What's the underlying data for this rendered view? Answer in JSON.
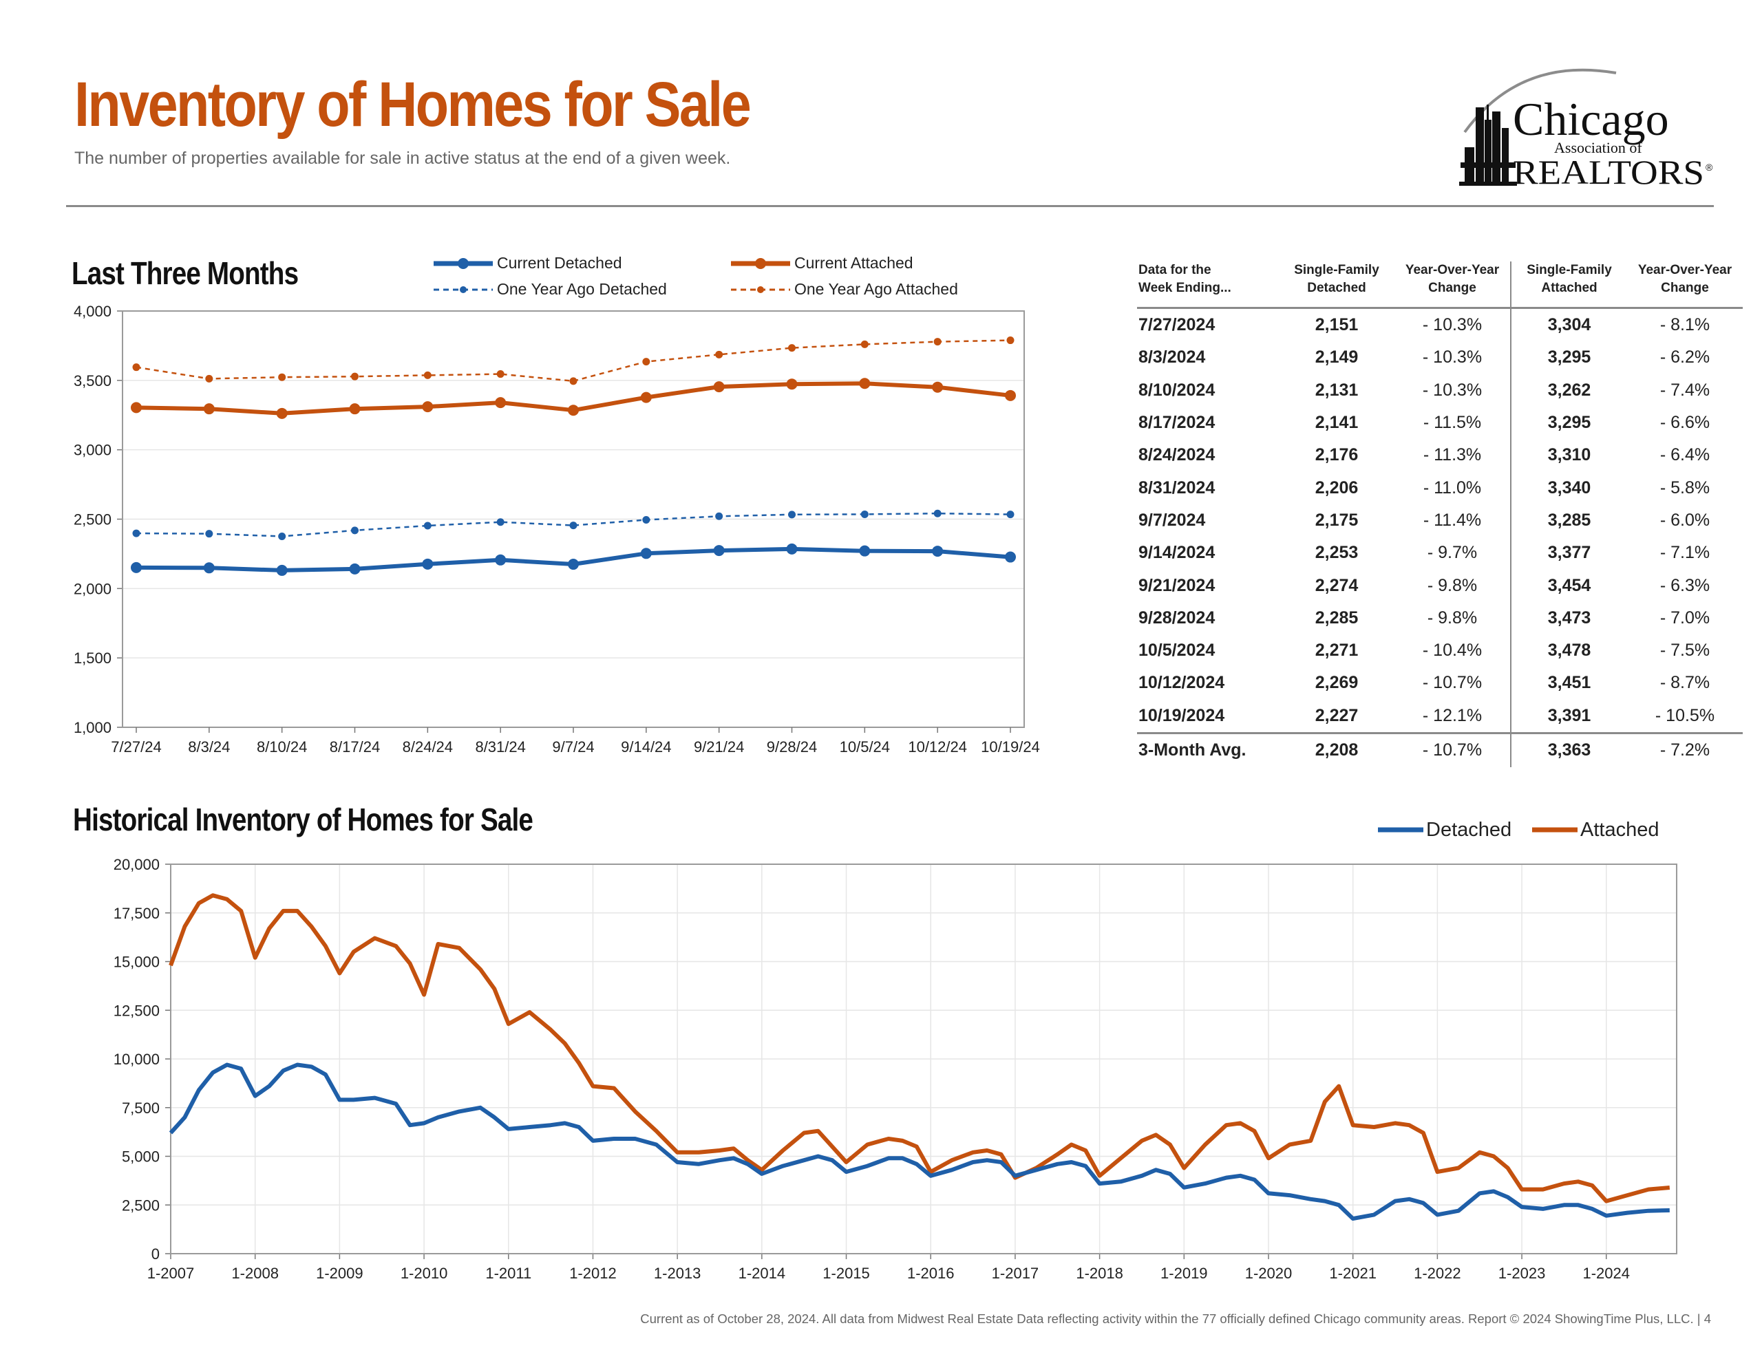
{
  "header": {
    "title": "Inventory of Homes for Sale",
    "subtitle": "The number of properties available for sale in active status at the end of a given week.",
    "logo": {
      "name": "Chicago",
      "line2": "Association of",
      "line3": "REALTORS",
      "mark": "®"
    }
  },
  "colors": {
    "accent": "#c4510e",
    "detached": "#1f5fa8",
    "attached": "#c4510e",
    "text": "#222222",
    "muted": "#666666",
    "grid": "#e6e6e6",
    "rule": "#8a8a8a"
  },
  "last_three_months": {
    "title": "Last Three Months"
  },
  "table": {
    "headers": [
      "Data for the\nWeek Ending...",
      "Single-Family\nDetached",
      "Year-Over-Year\nChange",
      "Single-Family\nAttached",
      "Year-Over-Year\nChange"
    ],
    "rows": [
      [
        "7/27/2024",
        "2,151",
        "- 10.3%",
        "3,304",
        "- 8.1%"
      ],
      [
        "8/3/2024",
        "2,149",
        "- 10.3%",
        "3,295",
        "- 6.2%"
      ],
      [
        "8/10/2024",
        "2,131",
        "- 10.3%",
        "3,262",
        "- 7.4%"
      ],
      [
        "8/17/2024",
        "2,141",
        "- 11.5%",
        "3,295",
        "- 6.6%"
      ],
      [
        "8/24/2024",
        "2,176",
        "- 11.3%",
        "3,310",
        "- 6.4%"
      ],
      [
        "8/31/2024",
        "2,206",
        "- 11.0%",
        "3,340",
        "- 5.8%"
      ],
      [
        "9/7/2024",
        "2,175",
        "- 11.4%",
        "3,285",
        "- 6.0%"
      ],
      [
        "9/14/2024",
        "2,253",
        "- 9.7%",
        "3,377",
        "- 7.1%"
      ],
      [
        "9/21/2024",
        "2,274",
        "- 9.8%",
        "3,454",
        "- 6.3%"
      ],
      [
        "9/28/2024",
        "2,285",
        "- 9.8%",
        "3,473",
        "- 7.0%"
      ],
      [
        "10/5/2024",
        "2,271",
        "- 10.4%",
        "3,478",
        "- 7.5%"
      ],
      [
        "10/12/2024",
        "2,269",
        "- 10.7%",
        "3,451",
        "- 8.7%"
      ],
      [
        "10/19/2024",
        "2,227",
        "- 12.1%",
        "3,391",
        "- 10.5%"
      ]
    ],
    "average_row": [
      "3-Month Avg.",
      "2,208",
      "- 10.7%",
      "3,363",
      "- 7.2%"
    ]
  },
  "historical": {
    "title": "Historical Inventory of Homes for Sale"
  },
  "footer": {
    "note": "Current as of October 28, 2024.  All data from Midwest Real Estate Data reflecting activity within the 77 officially defined Chicago community areas. Report © 2024 ShowingTime Plus, LLC.  |  4"
  },
  "chart_data": [
    {
      "type": "line",
      "title": "Last Three Months",
      "categories": [
        "7/27/24",
        "8/3/24",
        "8/10/24",
        "8/17/24",
        "8/24/24",
        "8/31/24",
        "9/7/24",
        "9/14/24",
        "9/21/24",
        "9/28/24",
        "10/5/24",
        "10/12/24",
        "10/19/24"
      ],
      "ylim": [
        1000,
        4000
      ],
      "yticks": [
        1000,
        1500,
        2000,
        2500,
        3000,
        3500,
        4000
      ],
      "ytick_labels": [
        "1,000",
        "1,500",
        "2,000",
        "2,500",
        "3,000",
        "3,500",
        "4,000"
      ],
      "grid": true,
      "legend": "top",
      "series": [
        {
          "name": "Current Detached",
          "color": "#1f5fa8",
          "style": "solid",
          "values": [
            2151,
            2149,
            2131,
            2141,
            2176,
            2206,
            2175,
            2253,
            2274,
            2285,
            2271,
            2269,
            2227
          ]
        },
        {
          "name": "Current Attached",
          "color": "#c4510e",
          "style": "solid",
          "values": [
            3304,
            3295,
            3262,
            3295,
            3310,
            3340,
            3285,
            3377,
            3454,
            3473,
            3478,
            3451,
            3391
          ]
        },
        {
          "name": "One Year Ago Detached",
          "color": "#1f5fa8",
          "style": "dashed",
          "values": [
            2398,
            2395,
            2376,
            2419,
            2453,
            2479,
            2455,
            2495,
            2521,
            2533,
            2535,
            2541,
            2534
          ]
        },
        {
          "name": "One Year Ago Attached",
          "color": "#c4510e",
          "style": "dashed",
          "values": [
            3595,
            3512,
            3523,
            3528,
            3537,
            3546,
            3495,
            3635,
            3686,
            3734,
            3760,
            3779,
            3789
          ]
        }
      ]
    },
    {
      "type": "line",
      "title": "Historical Inventory of Homes for Sale",
      "x_range": [
        "1-2007",
        "10-2024"
      ],
      "xtick_labels": [
        "1-2007",
        "1-2008",
        "1-2009",
        "1-2010",
        "1-2011",
        "1-2012",
        "1-2013",
        "1-2014",
        "1-2015",
        "1-2016",
        "1-2017",
        "1-2018",
        "1-2019",
        "1-2020",
        "1-2021",
        "1-2022",
        "1-2023",
        "1-2024"
      ],
      "ylim": [
        0,
        20000
      ],
      "yticks": [
        0,
        2500,
        5000,
        7500,
        10000,
        12500,
        15000,
        17500,
        20000
      ],
      "ytick_labels": [
        "0",
        "2,500",
        "5,000",
        "7,500",
        "10,000",
        "12,500",
        "15,000",
        "17,500",
        "20,000"
      ],
      "grid": true,
      "legend": "top-right",
      "series": [
        {
          "name": "Detached",
          "color": "#1f5fa8",
          "x": [
            "1-2007",
            "3-2007",
            "5-2007",
            "7-2007",
            "9-2007",
            "11-2007",
            "1-2008",
            "3-2008",
            "5-2008",
            "7-2008",
            "9-2008",
            "11-2008",
            "1-2009",
            "3-2009",
            "6-2009",
            "9-2009",
            "11-2009",
            "1-2010",
            "3-2010",
            "6-2010",
            "9-2010",
            "11-2010",
            "1-2011",
            "4-2011",
            "7-2011",
            "9-2011",
            "11-2011",
            "1-2012",
            "4-2012",
            "7-2012",
            "10-2012",
            "1-2013",
            "4-2013",
            "7-2013",
            "9-2013",
            "11-2013",
            "1-2014",
            "4-2014",
            "7-2014",
            "9-2014",
            "11-2014",
            "1-2015",
            "4-2015",
            "7-2015",
            "9-2015",
            "11-2015",
            "1-2016",
            "4-2016",
            "7-2016",
            "9-2016",
            "11-2016",
            "1-2017",
            "4-2017",
            "7-2017",
            "9-2017",
            "11-2017",
            "1-2018",
            "4-2018",
            "7-2018",
            "9-2018",
            "11-2018",
            "1-2019",
            "4-2019",
            "7-2019",
            "9-2019",
            "11-2019",
            "1-2020",
            "4-2020",
            "7-2020",
            "9-2020",
            "11-2020",
            "1-2021",
            "4-2021",
            "7-2021",
            "9-2021",
            "11-2021",
            "1-2022",
            "4-2022",
            "7-2022",
            "9-2022",
            "11-2022",
            "1-2023",
            "4-2023",
            "7-2023",
            "9-2023",
            "11-2023",
            "1-2024",
            "4-2024",
            "7-2024",
            "10-2024"
          ],
          "values": [
            6200,
            7000,
            8400,
            9300,
            9700,
            9500,
            8100,
            8600,
            9400,
            9700,
            9600,
            9200,
            7900,
            7900,
            8000,
            7700,
            6600,
            6700,
            7000,
            7300,
            7500,
            7000,
            6400,
            6500,
            6600,
            6700,
            6500,
            5800,
            5900,
            5900,
            5600,
            4700,
            4600,
            4800,
            4900,
            4600,
            4100,
            4500,
            4800,
            5000,
            4800,
            4200,
            4500,
            4900,
            4900,
            4600,
            4000,
            4300,
            4700,
            4800,
            4700,
            4000,
            4300,
            4600,
            4700,
            4500,
            3600,
            3700,
            4000,
            4300,
            4100,
            3400,
            3600,
            3900,
            4000,
            3800,
            3100,
            3000,
            2800,
            2700,
            2500,
            1800,
            2000,
            2700,
            2800,
            2600,
            2000,
            2200,
            3100,
            3200,
            2900,
            2400,
            2300,
            2500,
            2500,
            2300,
            1950,
            2100,
            2200,
            2227
          ]
        },
        {
          "name": "Attached",
          "color": "#c4510e",
          "x": [
            "1-2007",
            "3-2007",
            "5-2007",
            "7-2007",
            "9-2007",
            "11-2007",
            "1-2008",
            "3-2008",
            "5-2008",
            "7-2008",
            "9-2008",
            "11-2008",
            "1-2009",
            "3-2009",
            "6-2009",
            "9-2009",
            "11-2009",
            "1-2010",
            "3-2010",
            "6-2010",
            "9-2010",
            "11-2010",
            "1-2011",
            "4-2011",
            "7-2011",
            "9-2011",
            "11-2011",
            "1-2012",
            "4-2012",
            "7-2012",
            "10-2012",
            "1-2013",
            "4-2013",
            "7-2013",
            "9-2013",
            "11-2013",
            "1-2014",
            "4-2014",
            "7-2014",
            "9-2014",
            "11-2014",
            "1-2015",
            "4-2015",
            "7-2015",
            "9-2015",
            "11-2015",
            "1-2016",
            "4-2016",
            "7-2016",
            "9-2016",
            "11-2016",
            "1-2017",
            "4-2017",
            "7-2017",
            "9-2017",
            "11-2017",
            "1-2018",
            "4-2018",
            "7-2018",
            "9-2018",
            "11-2018",
            "1-2019",
            "4-2019",
            "7-2019",
            "9-2019",
            "11-2019",
            "1-2020",
            "4-2020",
            "7-2020",
            "9-2020",
            "11-2020",
            "1-2021",
            "4-2021",
            "7-2021",
            "9-2021",
            "11-2021",
            "1-2022",
            "4-2022",
            "7-2022",
            "9-2022",
            "11-2022",
            "1-2023",
            "4-2023",
            "7-2023",
            "9-2023",
            "11-2023",
            "1-2024",
            "4-2024",
            "7-2024",
            "10-2024"
          ],
          "values": [
            14800,
            16800,
            18000,
            18400,
            18200,
            17600,
            15200,
            16700,
            17600,
            17600,
            16800,
            15800,
            14400,
            15500,
            16200,
            15800,
            14900,
            13300,
            15900,
            15700,
            14600,
            13600,
            11800,
            12400,
            11500,
            10800,
            9800,
            8600,
            8500,
            7300,
            6300,
            5200,
            5200,
            5300,
            5400,
            4800,
            4300,
            5300,
            6200,
            6300,
            5500,
            4700,
            5600,
            5900,
            5800,
            5500,
            4200,
            4800,
            5200,
            5300,
            5100,
            3900,
            4400,
            5100,
            5600,
            5300,
            4000,
            4900,
            5800,
            6100,
            5600,
            4400,
            5600,
            6600,
            6700,
            6300,
            4900,
            5600,
            5800,
            7800,
            8600,
            6600,
            6500,
            6700,
            6600,
            6200,
            4200,
            4400,
            5200,
            5000,
            4400,
            3300,
            3300,
            3600,
            3700,
            3500,
            2700,
            3000,
            3300,
            3391
          ]
        }
      ]
    }
  ]
}
